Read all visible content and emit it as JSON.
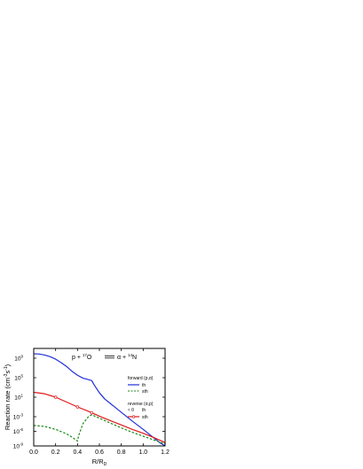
{
  "chart_data": {
    "type": "line",
    "title": "",
    "reaction": {
      "lhs": "p + ",
      "lhs_mass": "17",
      "lhs_el": "O",
      "rhs": "α + ",
      "rhs_mass": "14",
      "rhs_el": "N"
    },
    "xlabel": "R/R",
    "xlabel_sub": "D",
    "ylabel": "Reaction rate (cm",
    "ylabel_sup1": "-3",
    "ylabel_mid": "s",
    "ylabel_sup2": "-1",
    "ylabel_end": ")",
    "xlim": [
      0.0,
      1.2
    ],
    "ylim_log10": [
      -9,
      11
    ],
    "log_scale_y": true,
    "x_ticks": [
      "0.0",
      "0.2",
      "0.4",
      "0.6",
      "0.8",
      "1.0",
      "1.2"
    ],
    "x_tick_values": [
      0.0,
      0.2,
      0.4,
      0.6,
      0.8,
      1.0,
      1.2
    ],
    "y_ticks": [
      {
        "exp": 9,
        "base": "10",
        "sup": "9"
      },
      {
        "exp": 5,
        "base": "10",
        "sup": "5"
      },
      {
        "exp": 1,
        "base": "10",
        "sup": "1"
      },
      {
        "exp": -3,
        "base": "10",
        "sup": "-3"
      },
      {
        "exp": -6,
        "base": "10",
        "sup": "-6"
      },
      {
        "exp": -9,
        "base": "10",
        "sup": "-9"
      }
    ],
    "legend": {
      "placement": "right",
      "forward_title": "forward (p,α)",
      "reverse_title": "reverse (α,p)",
      "reverse_prefix": "≈ 0",
      "entries": [
        {
          "group": "forward",
          "label": "th",
          "color": "#1f2fd8",
          "dash": "solid"
        },
        {
          "group": "forward",
          "label": "sth",
          "color": "#1a8a1a",
          "dash": "dashed"
        },
        {
          "group": "reverse",
          "label": "th",
          "color": null,
          "dash": "none"
        },
        {
          "group": "reverse",
          "label": "sth",
          "color": "#e01818",
          "dash": "solid-marker"
        }
      ]
    },
    "series": [
      {
        "name": "forward th",
        "color": "#1f2fd8",
        "dash": "solid",
        "x": [
          0.0,
          0.05,
          0.1,
          0.15,
          0.2,
          0.25,
          0.3,
          0.35,
          0.4,
          0.45,
          0.5,
          0.53,
          0.55,
          0.6,
          0.65,
          0.7,
          0.8,
          0.9,
          1.0,
          1.1,
          1.15,
          1.2
        ],
        "log10y": [
          9.9,
          9.85,
          9.65,
          9.3,
          8.8,
          8.1,
          7.3,
          6.3,
          5.5,
          4.9,
          4.6,
          4.4,
          3.6,
          1.9,
          0.6,
          -0.3,
          -2.1,
          -3.9,
          -5.6,
          -7.4,
          -8.3,
          -9.0
        ]
      },
      {
        "name": "forward sth",
        "color": "#1a8a1a",
        "dash": "dashed",
        "x": [
          0.0,
          0.1,
          0.2,
          0.3,
          0.35,
          0.4,
          0.41,
          0.45,
          0.5,
          0.53,
          0.6,
          0.7,
          0.8,
          0.9,
          1.0,
          1.1,
          1.2
        ],
        "log10y": [
          -4.8,
          -5.0,
          -5.6,
          -6.5,
          -7.2,
          -8.0,
          -6.9,
          -4.4,
          -3.0,
          -2.6,
          -3.3,
          -4.3,
          -5.3,
          -6.2,
          -7.0,
          -7.8,
          -8.6
        ]
      },
      {
        "name": "reverse sth",
        "color": "#e01818",
        "dash": "solid",
        "marker_x": [
          0.2,
          0.4,
          0.53
        ],
        "x": [
          0.0,
          0.1,
          0.2,
          0.3,
          0.4,
          0.5,
          0.53,
          0.6,
          0.7,
          0.8,
          0.9,
          1.0,
          1.1,
          1.2
        ],
        "log10y": [
          2.0,
          1.7,
          1.0,
          0.0,
          -1.0,
          -1.9,
          -2.2,
          -2.9,
          -3.8,
          -4.7,
          -5.6,
          -6.4,
          -7.3,
          -8.3
        ]
      }
    ]
  }
}
